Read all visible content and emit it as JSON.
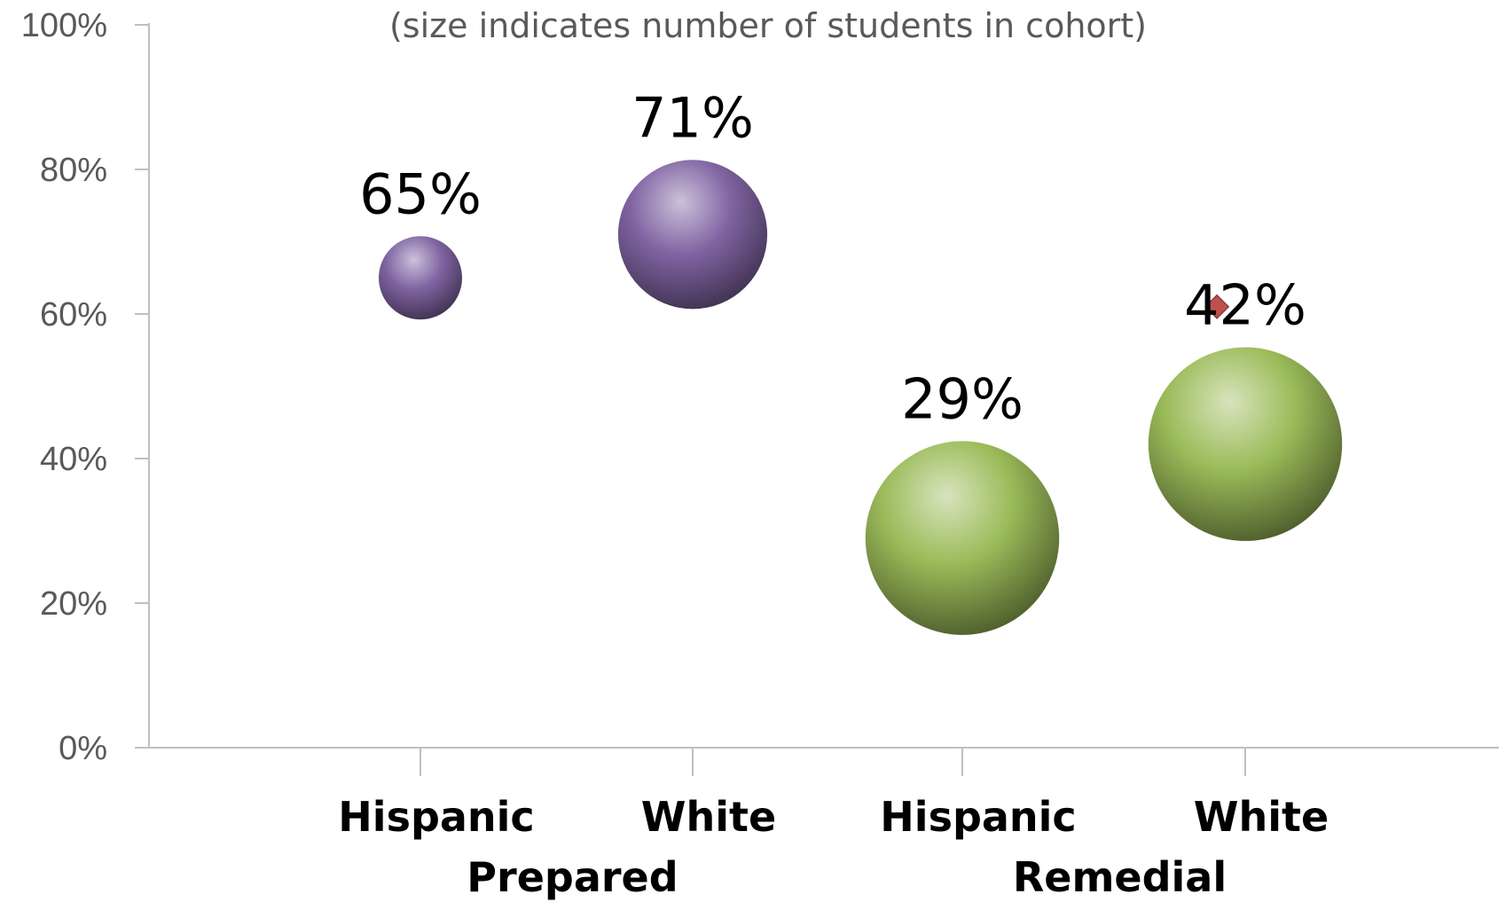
{
  "chart_data": {
    "type": "bubble",
    "subtitle": "(size indicates number of students in cohort)",
    "yaxis": {
      "ylim": [
        0,
        100
      ],
      "ticks": [
        0,
        20,
        40,
        60,
        80,
        100
      ],
      "tick_labels": [
        "0%",
        "20%",
        "40%",
        "60%",
        "80%",
        "100%"
      ]
    },
    "groups": [
      "Prepared",
      "Remedial"
    ],
    "categories": [
      "Hispanic",
      "White",
      "Hispanic",
      "White"
    ],
    "points": [
      {
        "group": "Prepared",
        "category": "Hispanic",
        "value": 65,
        "label": "65%",
        "size": 1,
        "color": "#8064a2"
      },
      {
        "group": "Prepared",
        "category": "White",
        "value": 71,
        "label": "71%",
        "size": 3.2,
        "color": "#8064a2"
      },
      {
        "group": "Remedial",
        "category": "Hispanic",
        "value": 29,
        "label": "29%",
        "size": 5.4,
        "color": "#9bbb59"
      },
      {
        "group": "Remedial",
        "category": "White",
        "value": 42,
        "label": "42%",
        "size": 5.4,
        "color": "#9bbb59"
      }
    ],
    "marker": {
      "position": 2.9,
      "value": 61,
      "color": "#c0504d"
    },
    "grid": false,
    "legend": "none"
  }
}
